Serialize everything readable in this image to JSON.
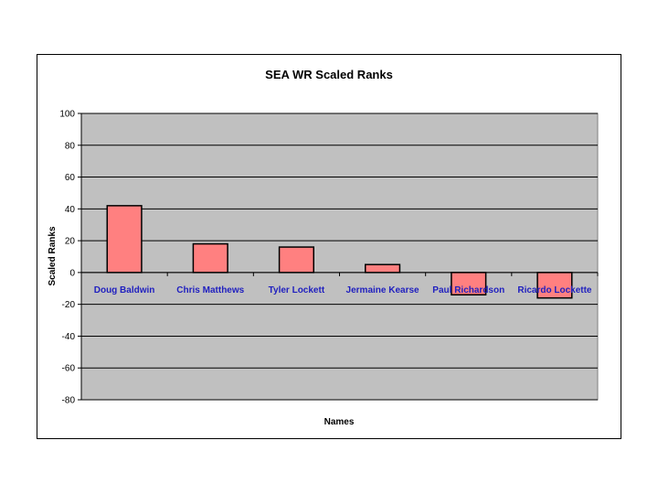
{
  "chart_data": {
    "type": "bar",
    "title": "SEA WR  Scaled Ranks",
    "xlabel": "Names",
    "ylabel": "Scaled Ranks",
    "categories": [
      "Doug Baldwin",
      "Chris Matthews",
      "Tyler Lockett",
      "Jermaine Kearse",
      "Paul Richardson",
      "Ricardo Lockette"
    ],
    "values": [
      42,
      18,
      16,
      5,
      -14,
      -16
    ],
    "ylim": [
      -80,
      100
    ],
    "yticks": [
      100,
      80,
      60,
      40,
      20,
      0,
      -20,
      -40,
      -60,
      -80
    ],
    "grid": true,
    "legend": "none",
    "colors": {
      "bar_fill": "#ff8080",
      "bar_stroke": "#000000",
      "plot_background": "#c0c0c0",
      "category_label": "#1f1fbf"
    }
  }
}
